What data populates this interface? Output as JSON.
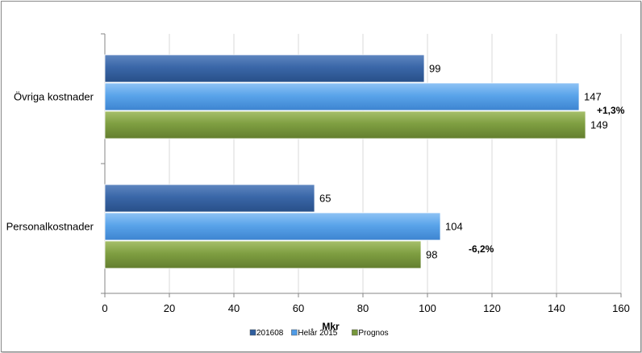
{
  "chart_data": {
    "type": "bar",
    "orientation": "horizontal",
    "categories": [
      "Övriga kostnader",
      "Personalkostnader"
    ],
    "series": [
      {
        "name": "201608",
        "values": [
          99,
          65
        ],
        "color": "#2f5e9e"
      },
      {
        "name": "Helår 2015",
        "values": [
          147,
          104
        ],
        "color": "#4f9be6"
      },
      {
        "name": "Prognos",
        "values": [
          149,
          98
        ],
        "color": "#77973b"
      }
    ],
    "annotations": [
      "+1,3%",
      "-6,2%"
    ],
    "xlabel": "Mkr",
    "ylabel": "",
    "xlim": [
      0,
      160
    ],
    "xticks": [
      0,
      20,
      40,
      60,
      80,
      100,
      120,
      140,
      160
    ],
    "grid": "vertical",
    "legend": "bottom"
  }
}
